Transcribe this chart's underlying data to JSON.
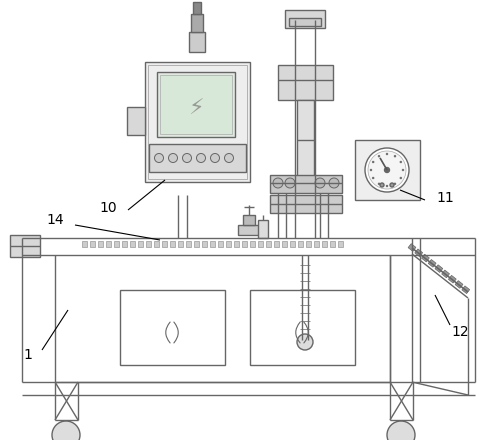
{
  "background_color": "#ffffff",
  "line_color": "#666666",
  "line_width": 1.0,
  "label_fontsize": 10,
  "figsize": [
    4.97,
    4.4
  ],
  "dpi": 100
}
